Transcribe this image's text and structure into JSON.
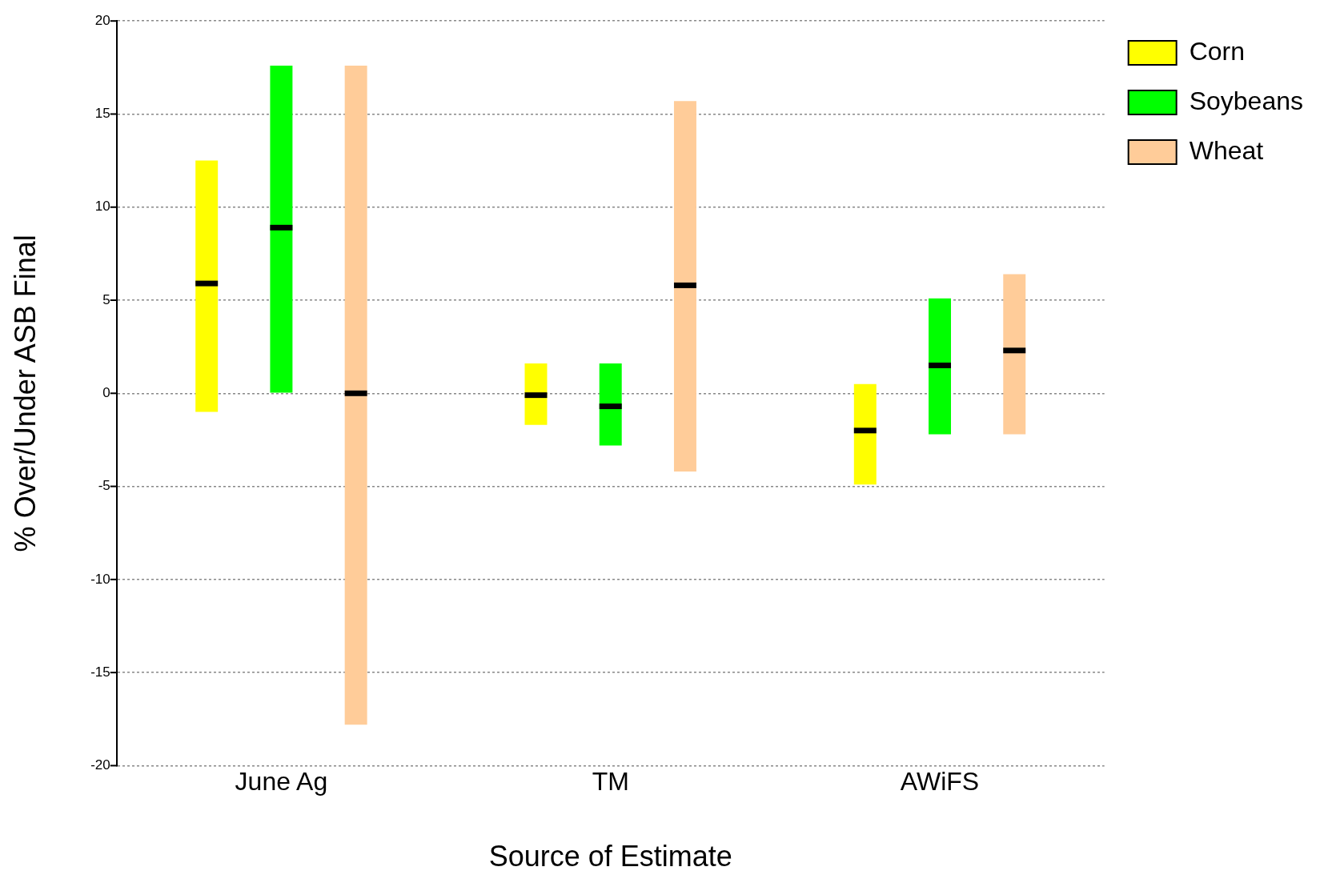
{
  "chart_data": {
    "type": "box",
    "xlabel": "Source of Estimate",
    "ylabel": "% Over/Under ASB Final",
    "categories": [
      "June Ag",
      "TM",
      "AWiFS"
    ],
    "ylim": [
      -20,
      20
    ],
    "yticks": [
      -20,
      -15,
      -10,
      -5,
      0,
      5,
      10,
      15,
      20
    ],
    "grid": "y",
    "legend": "top right",
    "series": [
      {
        "name": "Corn",
        "color": "#ffff00",
        "boxes": [
          {
            "low": -1.0,
            "q1": -1.0,
            "median": 5.9,
            "q3": 12.5,
            "high": 12.5
          },
          {
            "low": -1.7,
            "q1": -1.7,
            "median": -0.1,
            "q3": 1.6,
            "high": 1.6
          },
          {
            "low": -4.9,
            "q1": -4.9,
            "median": -2.0,
            "q3": 0.5,
            "high": 0.5
          }
        ]
      },
      {
        "name": "Soybeans",
        "color": "#00ff00",
        "boxes": [
          {
            "low": 0.0,
            "q1": 0.0,
            "median": 8.9,
            "q3": 17.6,
            "high": 17.6
          },
          {
            "low": -2.8,
            "q1": -2.8,
            "median": -0.7,
            "q3": 1.6,
            "high": 1.6
          },
          {
            "low": -2.2,
            "q1": -2.2,
            "median": 1.5,
            "q3": 5.1,
            "high": 5.1
          }
        ]
      },
      {
        "name": "Wheat",
        "color": "#ffcc99",
        "boxes": [
          {
            "low": -17.8,
            "q1": -17.8,
            "median": 0.0,
            "q3": 17.6,
            "high": 17.6
          },
          {
            "low": -4.2,
            "q1": -4.2,
            "median": 5.8,
            "q3": 15.7,
            "high": 15.7
          },
          {
            "low": -2.2,
            "q1": -2.2,
            "median": 2.3,
            "q3": 6.4,
            "high": 6.4
          }
        ]
      }
    ]
  }
}
